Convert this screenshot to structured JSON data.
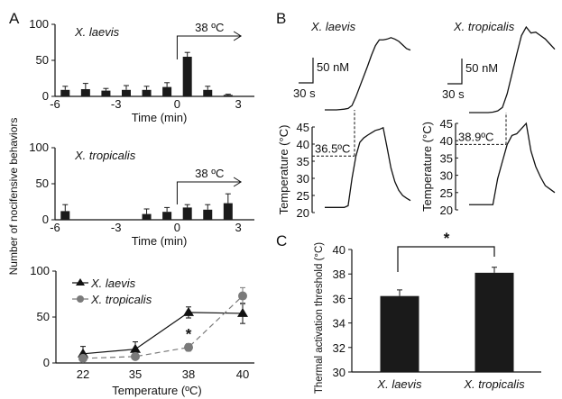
{
  "figure": {
    "panel_labels": [
      "A",
      "B",
      "C"
    ]
  },
  "chart_data": [
    {
      "id": "A1",
      "type": "bar",
      "title": "X. laevis",
      "xlabel": "Time (min)",
      "ylabel": "Number of nocifensive behaviors",
      "xlim": [
        -6,
        3.8
      ],
      "ylim": [
        0,
        100
      ],
      "xticks": [
        -6,
        -3,
        0,
        3
      ],
      "yticks": [
        0,
        50,
        100
      ],
      "annotation": {
        "text": "38 ºC",
        "from_x": 0,
        "to_x": 3
      },
      "x": [
        -5.5,
        -4.5,
        -3.5,
        -2.5,
        -1.5,
        -0.5,
        0.5,
        1.5,
        2.5
      ],
      "values": [
        9,
        10,
        8,
        9,
        9,
        13,
        55,
        9,
        2
      ],
      "errors": [
        5,
        8,
        3,
        6,
        5,
        6,
        6,
        5,
        1
      ]
    },
    {
      "id": "A2",
      "type": "bar",
      "title": "X. tropicalis",
      "xlabel": "Time (min)",
      "ylabel": "Number of nocifensive behaviors",
      "xlim": [
        -6,
        3.8
      ],
      "ylim": [
        0,
        100
      ],
      "xticks": [
        -6,
        -3,
        0,
        3
      ],
      "yticks": [
        0,
        50,
        100
      ],
      "annotation": {
        "text": "38 ºC",
        "from_x": 0,
        "to_x": 3
      },
      "x": [
        -5.5,
        -1.5,
        -0.5,
        0.5,
        1.5,
        2.5
      ],
      "values": [
        12,
        8,
        11,
        17,
        14,
        23
      ],
      "errors": [
        9,
        7,
        6,
        4,
        7,
        13
      ]
    },
    {
      "id": "A3",
      "type": "line",
      "xlabel": "Temperature (ºC)",
      "ylabel": "Number of nocifensive behaviors",
      "ylim": [
        0,
        100
      ],
      "yticks": [
        0,
        50,
        100
      ],
      "categories": [
        "22",
        "35",
        "38",
        "40"
      ],
      "legend_position": "top-left",
      "significance": [
        {
          "category": "38",
          "mark": "*"
        }
      ],
      "series": [
        {
          "name": "X. laevis",
          "marker": "triangle",
          "style": "solid",
          "color": "#111111",
          "values": [
            10,
            15,
            55,
            54
          ],
          "errors": [
            8,
            8,
            6,
            11
          ]
        },
        {
          "name": "X. tropicalis",
          "marker": "circle",
          "style": "dashed",
          "color": "#7a7a7a",
          "values": [
            5,
            7,
            17,
            73
          ],
          "errors": [
            3,
            3,
            4,
            9
          ]
        }
      ]
    },
    {
      "id": "B1",
      "type": "line",
      "title": "X. laevis",
      "scalebar": {
        "vertical": "50 nM",
        "horizontal": "30 s"
      },
      "ylabel": "Temperature (°C)",
      "ylim": [
        20,
        45
      ],
      "yticks": [
        20,
        25,
        30,
        35,
        40,
        45
      ],
      "threshold_label": "36.5ºC",
      "threshold": 36.5,
      "series": [
        {
          "name": "calcium",
          "unit": "nM (relative)",
          "values": [
            0,
            0,
            0,
            0,
            0.5,
            1,
            2,
            6,
            18,
            32,
            46,
            60,
            75,
            88,
            96,
            96,
            97,
            99,
            97,
            94,
            89,
            84,
            82
          ]
        },
        {
          "name": "temperature",
          "unit": "°C",
          "values": [
            21.5,
            21.5,
            21.5,
            21.5,
            21.5,
            21.5,
            22,
            30,
            36.5,
            40.5,
            41.8,
            42.6,
            43.3,
            44,
            44.3,
            44.8,
            39,
            33,
            29,
            26.5,
            25,
            24.2,
            23.5
          ]
        }
      ]
    },
    {
      "id": "B2",
      "type": "line",
      "title": "X. tropicalis",
      "scalebar": {
        "vertical": "50 nM",
        "horizontal": "30 s"
      },
      "ylabel": "Temperature (°C)",
      "ylim": [
        20,
        45
      ],
      "yticks": [
        20,
        25,
        30,
        35,
        40,
        45
      ],
      "threshold_label": "38.9ºC",
      "threshold": 38.9,
      "series": [
        {
          "name": "calcium",
          "unit": "nM (relative)",
          "values": [
            0,
            0,
            0,
            0,
            0,
            0.5,
            2,
            6,
            22,
            45,
            68,
            90,
            100,
            93,
            94,
            90,
            86,
            80,
            74
          ]
        },
        {
          "name": "temperature",
          "unit": "°C",
          "values": [
            21.5,
            21.5,
            21.5,
            21.5,
            21.5,
            21.5,
            29,
            34,
            38.9,
            41.5,
            42,
            43.5,
            45,
            37,
            32.5,
            29.5,
            27,
            26,
            25
          ]
        }
      ]
    },
    {
      "id": "C",
      "type": "bar",
      "ylabel": "Thermal activation threshold (°C)",
      "ylim": [
        30,
        40
      ],
      "yticks": [
        30,
        32,
        34,
        36,
        38,
        40
      ],
      "categories": [
        "X. laevis",
        "X. tropicalis"
      ],
      "values": [
        36.2,
        38.1
      ],
      "errors": [
        0.5,
        0.45
      ],
      "significance": {
        "between": [
          "X. laevis",
          "X. tropicalis"
        ],
        "mark": "*"
      }
    }
  ]
}
